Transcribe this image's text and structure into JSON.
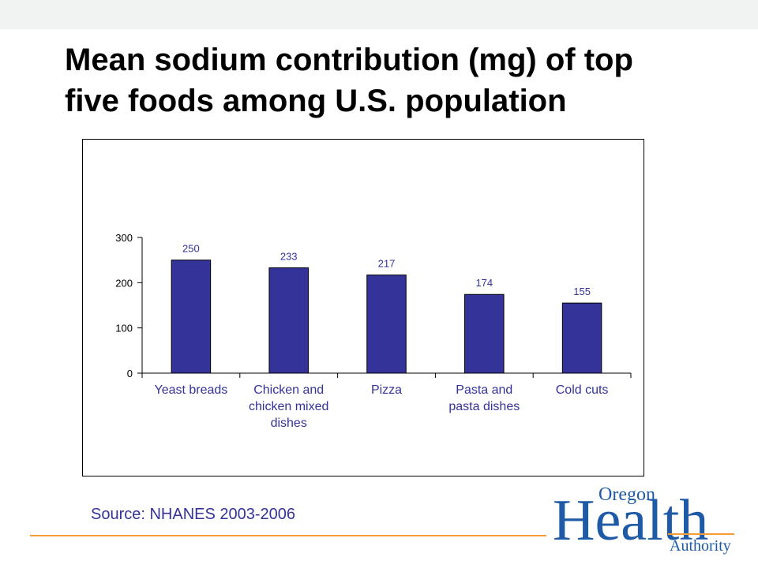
{
  "slide": {
    "title_line1": "Mean sodium contribution (mg) of top",
    "title_line2": "five foods among U.S. population",
    "source": "Source: NHANES 2003-2006"
  },
  "logo": {
    "word_oregon": "Oregon",
    "word_health": "Health",
    "word_authority": "Authority",
    "colors": {
      "health": "#1f5aa6",
      "oregon": "#1f5aa6",
      "authority": "#1f5aa6",
      "accent": "#f29d38"
    }
  },
  "colors": {
    "bar": "#333399",
    "bar_outline": "#000000",
    "label_text": "#333399",
    "axis": "#000000",
    "rule": "#f29d38"
  },
  "chart_data": {
    "type": "bar",
    "categories": [
      [
        "Yeast breads"
      ],
      [
        "Chicken and",
        "chicken mixed",
        "dishes"
      ],
      [
        "Pizza"
      ],
      [
        "Pasta and",
        "pasta dishes"
      ],
      [
        "Cold cuts"
      ]
    ],
    "values": [
      250,
      233,
      217,
      174,
      155
    ],
    "data_labels": [
      "250",
      "233",
      "217",
      "174",
      "155"
    ],
    "yticks": [
      0,
      100,
      200,
      300
    ],
    "ytick_labels": [
      "0",
      "100",
      "200",
      "300"
    ],
    "ylim": [
      0,
      300
    ],
    "grid": false,
    "legend": "none"
  }
}
